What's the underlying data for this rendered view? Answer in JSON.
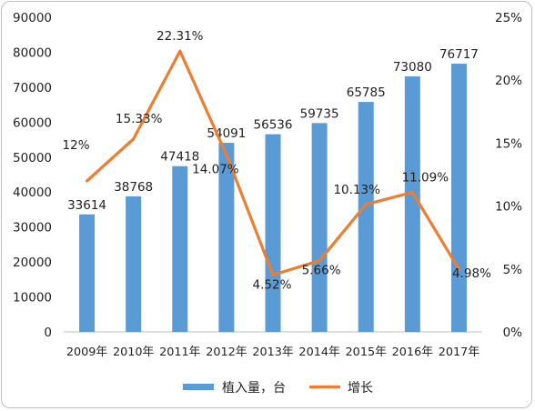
{
  "chart_data": {
    "type": "bar",
    "categories": [
      "2009年",
      "2010年",
      "2011年",
      "2012年",
      "2013年",
      "2014年",
      "2015年",
      "2016年",
      "2017年"
    ],
    "series": [
      {
        "name": "植入量，台",
        "type": "bar",
        "axis": "left",
        "color": "#5b9bd5",
        "values": [
          33614,
          38768,
          47418,
          54091,
          56536,
          59735,
          65785,
          73080,
          76717
        ],
        "labels": [
          "33614",
          "38768",
          "47418",
          "54091",
          "56536",
          "59735",
          "65785",
          "73080",
          "76717"
        ]
      },
      {
        "name": "增长",
        "type": "line",
        "axis": "right",
        "color": "#ed7d31",
        "values": [
          12,
          15.33,
          22.31,
          14.07,
          4.52,
          5.66,
          10.13,
          11.09,
          4.98
        ],
        "labels": [
          "12%",
          "15.33%",
          "22.31%",
          "14.07%",
          "4.52%",
          "5.66%",
          "10.13%",
          "11.09%",
          "4.98%"
        ]
      }
    ],
    "y_left": {
      "ylim": [
        0,
        90000
      ],
      "ticks": [
        "0",
        "10000",
        "20000",
        "30000",
        "40000",
        "50000",
        "60000",
        "70000",
        "80000",
        "90000"
      ]
    },
    "y_right": {
      "ylim": [
        0,
        25
      ],
      "ticks": [
        "0%",
        "5%",
        "10%",
        "15%",
        "20%",
        "25%"
      ]
    },
    "grid": false,
    "legend": "bottom"
  }
}
